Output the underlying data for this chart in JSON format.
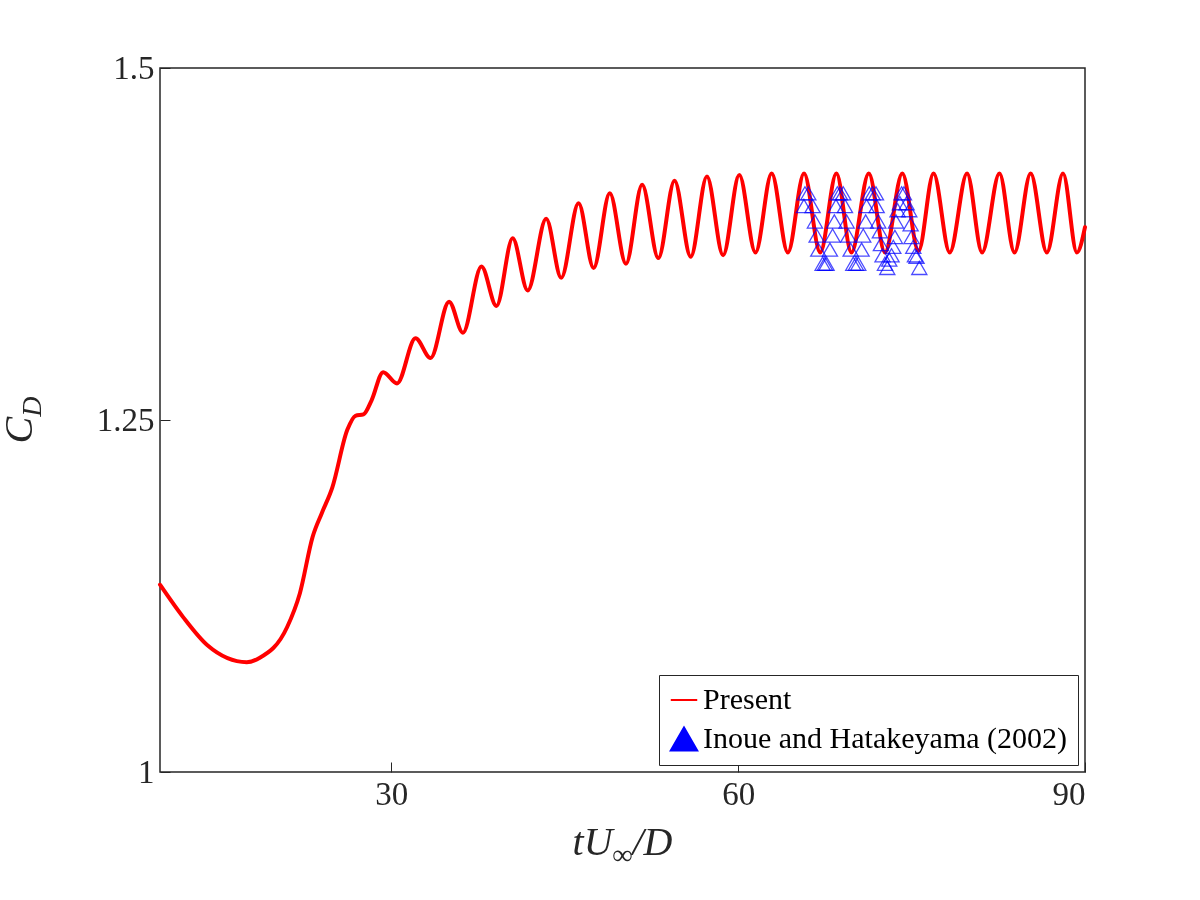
{
  "chart_data": {
    "type": "line",
    "xlabel": "tU$_{∞}$/D",
    "ylabel": "C$_{D}$",
    "xlim": [
      10,
      90
    ],
    "xticks": [
      30,
      60,
      90
    ],
    "ylim": [
      1,
      1.5
    ],
    "yticks": [
      1,
      1.25,
      1.5
    ],
    "grid": false,
    "legend": "bottom right",
    "series": [
      {
        "name": "Present",
        "color": "#ff0000",
        "line_style": "solid",
        "x": [
          10,
          12,
          14.1,
          17.5,
          18.6,
          21,
          22.1,
          23.2,
          24,
          24.9,
          26.2,
          26.9,
          27.6,
          28.3,
          29.3,
          30.5,
          32.1,
          33.4,
          35,
          36.2,
          37.8,
          39.1,
          40.5,
          41.8,
          43.4,
          44.7,
          46.2,
          47.5,
          48.9,
          50.3,
          51.7,
          53.1,
          54.5,
          55.9,
          57.3,
          58.7,
          60.1,
          61.5,
          62.9,
          64.3,
          65.7,
          67.1,
          68.5,
          69.8,
          71.3,
          72.7,
          74.2,
          75.6,
          76.9,
          78.3,
          79.8,
          81.1,
          82.6,
          83.9,
          85.3,
          86.7,
          88.1,
          89.3,
          90
        ],
        "values": [
          1.133,
          1.11,
          1.09,
          1.078,
          1.081,
          1.103,
          1.127,
          1.167,
          1.184,
          1.202,
          1.243,
          1.253,
          1.254,
          1.264,
          1.284,
          1.276,
          1.308,
          1.294,
          1.334,
          1.312,
          1.359,
          1.331,
          1.379,
          1.342,
          1.393,
          1.351,
          1.404,
          1.358,
          1.411,
          1.361,
          1.417,
          1.365,
          1.42,
          1.366,
          1.423,
          1.367,
          1.424,
          1.369,
          1.425,
          1.369,
          1.425,
          1.369,
          1.425,
          1.369,
          1.425,
          1.369,
          1.425,
          1.37,
          1.425,
          1.369,
          1.425,
          1.369,
          1.425,
          1.369,
          1.425,
          1.369,
          1.425,
          1.369,
          1.387
        ]
      },
      {
        "name": "Inoue and Hatakeyama (2002)",
        "type": "scatter",
        "marker": "triangle",
        "color": "#0000ff",
        "x": [
          65.78,
          66.07,
          65.69,
          66.44,
          66.64,
          66.79,
          66.93,
          67.31,
          67.51,
          67.65,
          67.94,
          68.17,
          68.32,
          68.46,
          68.58,
          68.81,
          69.09,
          69.24,
          69.38,
          69.53,
          69.73,
          69.96,
          70.19,
          70.39,
          70.68,
          70.82,
          71.03,
          71.11,
          71.34,
          71.63,
          71.92,
          71.98,
          72.12,
          72.26,
          72.35,
          72.49,
          72.7,
          72.9,
          73.07,
          73.27,
          73.42,
          73.56,
          73.65,
          73.79,
          73.99,
          74.14,
          74.34,
          74.57,
          74.8,
          74.92,
          75,
          75.15,
          75.29,
          75.43,
          75.67
        ],
        "values": [
          1.411,
          1.411,
          1.402,
          1.402,
          1.391,
          1.381,
          1.371,
          1.361,
          1.361,
          1.361,
          1.371,
          1.381,
          1.391,
          1.402,
          1.411,
          1.411,
          1.411,
          1.402,
          1.391,
          1.381,
          1.371,
          1.361,
          1.361,
          1.361,
          1.371,
          1.381,
          1.391,
          1.402,
          1.411,
          1.411,
          1.411,
          1.402,
          1.391,
          1.384,
          1.375,
          1.367,
          1.361,
          1.358,
          1.364,
          1.367,
          1.373,
          1.38,
          1.391,
          1.399,
          1.404,
          1.411,
          1.411,
          1.404,
          1.399,
          1.389,
          1.38,
          1.373,
          1.367,
          1.366,
          1.358
        ]
      }
    ]
  }
}
